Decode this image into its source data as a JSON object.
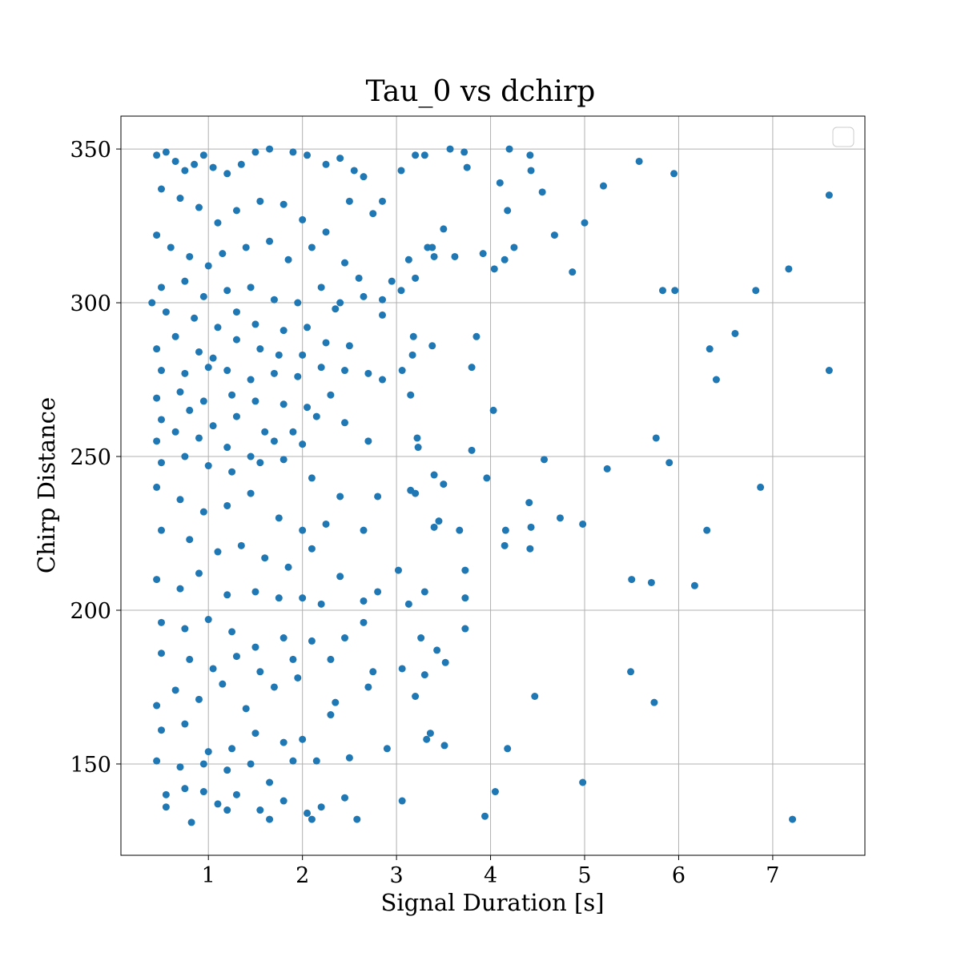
{
  "chart_data": {
    "type": "scatter",
    "title": "Tau_0 vs dchirp",
    "x_label": "Signal Duration [s]",
    "y_label": "Chirp Distance",
    "color": "#1f77b4",
    "grid": true,
    "legend": "upper right",
    "xlim": [
      0.07,
      7.98
    ],
    "ylim": [
      120.3,
      360.7
    ],
    "xticks": [
      1,
      2,
      3,
      4,
      5,
      6,
      7
    ],
    "yticks": [
      150,
      200,
      250,
      300,
      350
    ],
    "x": [
      3.57,
      3.72,
      4.2,
      4.42,
      3.75,
      4.43,
      3.05,
      3.2,
      3.3,
      5.58,
      5.95,
      4.1,
      5.2,
      4.55,
      7.6,
      4.18,
      5.0,
      4.68,
      3.5,
      3.33,
      3.38,
      4.25,
      3.92,
      3.62,
      3.4,
      4.15,
      3.13,
      4.04,
      4.87,
      7.17,
      3.05,
      3.2,
      2.95,
      5.83,
      5.96,
      6.82,
      3.85,
      3.18,
      6.6,
      3.17,
      3.38,
      6.33,
      3.8,
      3.06,
      6.4,
      7.6,
      3.15,
      4.03,
      3.22,
      3.23,
      3.8,
      5.76,
      4.57,
      5.24,
      5.9,
      3.4,
      3.5,
      3.96,
      6.87,
      3.15,
      3.2,
      4.41,
      4.74,
      3.45,
      3.67,
      4.16,
      4.43,
      4.98,
      6.3,
      3.4,
      4.15,
      4.42,
      3.73,
      3.02,
      5.5,
      5.71,
      6.17,
      3.3,
      3.73,
      3.13,
      3.73,
      3.26,
      3.43,
      3.52,
      3.06,
      5.49,
      3.3,
      3.2,
      4.47,
      5.74,
      3.36,
      3.32,
      3.51,
      4.18,
      4.05,
      4.98,
      3.06,
      3.94,
      7.21,
      0.45,
      0.55,
      0.65,
      0.75,
      0.85,
      0.95,
      1.05,
      1.2,
      1.35,
      1.5,
      1.65,
      1.9,
      2.05,
      2.25,
      2.4,
      2.55,
      2.65,
      0.5,
      0.7,
      0.9,
      1.1,
      1.3,
      1.55,
      1.8,
      2.0,
      2.25,
      2.5,
      2.75,
      2.85,
      0.45,
      0.6,
      0.8,
      1.0,
      1.15,
      1.4,
      1.65,
      1.85,
      2.1,
      2.45,
      2.6,
      0.5,
      0.75,
      0.95,
      1.2,
      1.45,
      1.7,
      1.95,
      2.2,
      2.4,
      2.65,
      2.85,
      0.4,
      0.55,
      0.85,
      1.1,
      1.3,
      1.5,
      1.8,
      2.05,
      2.35,
      2.85,
      0.45,
      0.65,
      0.9,
      1.05,
      1.3,
      1.55,
      1.75,
      2.0,
      2.25,
      2.5,
      0.5,
      0.75,
      1.0,
      1.2,
      1.45,
      1.7,
      1.95,
      2.2,
      2.45,
      2.7,
      2.85,
      0.45,
      0.7,
      0.95,
      1.25,
      1.5,
      1.8,
      2.05,
      2.3,
      0.5,
      0.8,
      1.05,
      1.3,
      1.6,
      1.9,
      2.15,
      2.45,
      0.45,
      0.65,
      0.9,
      1.2,
      1.45,
      1.7,
      2.0,
      2.7,
      0.5,
      0.75,
      1.0,
      1.25,
      1.55,
      1.8,
      2.1,
      2.4,
      2.8,
      0.45,
      0.7,
      0.95,
      1.2,
      1.45,
      1.75,
      2.0,
      2.25,
      2.65,
      0.5,
      0.8,
      1.1,
      1.35,
      1.6,
      1.85,
      2.1,
      2.4,
      0.45,
      0.7,
      0.9,
      1.2,
      1.5,
      1.75,
      2.0,
      2.2,
      2.65,
      2.8,
      0.5,
      0.75,
      1.0,
      1.25,
      1.5,
      1.8,
      2.1,
      2.45,
      2.65,
      0.5,
      0.8,
      1.05,
      1.3,
      1.55,
      1.9,
      2.3,
      2.75,
      0.45,
      0.65,
      0.9,
      1.15,
      1.4,
      1.7,
      1.95,
      2.35,
      2.7,
      0.5,
      0.75,
      1.0,
      1.25,
      1.5,
      1.8,
      2.0,
      2.3,
      2.9,
      0.45,
      0.7,
      0.95,
      1.2,
      1.45,
      1.65,
      1.9,
      2.15,
      2.5,
      0.55,
      0.75,
      0.95,
      1.1,
      1.3,
      1.55,
      1.8,
      2.05,
      2.2,
      2.45,
      0.55,
      0.82,
      1.2,
      1.65,
      2.1,
      2.58
    ],
    "values": [
      350,
      349,
      350,
      348,
      344,
      343,
      343,
      348,
      348,
      346,
      342,
      339,
      338,
      336,
      335,
      330,
      326,
      322,
      324,
      318,
      318,
      318,
      316,
      315,
      315,
      314,
      314,
      311,
      310,
      311,
      304,
      308,
      307,
      304,
      304,
      304,
      289,
      289,
      290,
      283,
      286,
      285,
      279,
      278,
      275,
      278,
      270,
      265,
      256,
      253,
      252,
      256,
      249,
      246,
      248,
      244,
      241,
      243,
      240,
      239,
      238,
      235,
      230,
      229,
      226,
      226,
      227,
      228,
      226,
      227,
      221,
      220,
      213,
      213,
      210,
      209,
      208,
      206,
      204,
      202,
      194,
      191,
      187,
      183,
      181,
      180,
      179,
      172,
      172,
      170,
      160,
      158,
      156,
      155,
      141,
      144,
      138,
      133,
      132,
      348,
      349,
      346,
      343,
      345,
      348,
      344,
      342,
      345,
      349,
      350,
      349,
      348,
      345,
      347,
      343,
      341,
      337,
      334,
      331,
      326,
      330,
      333,
      332,
      327,
      323,
      333,
      329,
      333,
      322,
      318,
      315,
      312,
      316,
      318,
      320,
      314,
      318,
      313,
      308,
      305,
      307,
      302,
      304,
      305,
      301,
      300,
      305,
      300,
      302,
      301,
      300,
      297,
      295,
      292,
      297,
      293,
      291,
      292,
      298,
      296,
      285,
      289,
      284,
      282,
      288,
      285,
      283,
      283,
      287,
      286,
      278,
      277,
      279,
      278,
      275,
      277,
      276,
      279,
      278,
      277,
      275,
      269,
      271,
      268,
      270,
      268,
      267,
      266,
      270,
      262,
      265,
      260,
      263,
      258,
      258,
      263,
      261,
      255,
      258,
      256,
      253,
      250,
      255,
      254,
      255,
      248,
      250,
      247,
      245,
      248,
      249,
      243,
      237,
      237,
      240,
      236,
      232,
      234,
      238,
      230,
      226,
      228,
      226,
      226,
      223,
      219,
      221,
      217,
      214,
      220,
      211,
      210,
      207,
      212,
      205,
      206,
      204,
      204,
      202,
      203,
      206,
      196,
      194,
      197,
      193,
      188,
      191,
      190,
      191,
      196,
      186,
      184,
      181,
      185,
      180,
      184,
      184,
      180,
      169,
      174,
      171,
      176,
      168,
      175,
      178,
      170,
      175,
      161,
      163,
      154,
      155,
      160,
      157,
      158,
      166,
      155,
      151,
      149,
      150,
      148,
      150,
      144,
      151,
      151,
      152,
      140,
      142,
      141,
      137,
      140,
      135,
      138,
      134,
      136,
      139,
      136,
      131,
      135,
      132,
      132,
      132
    ]
  }
}
